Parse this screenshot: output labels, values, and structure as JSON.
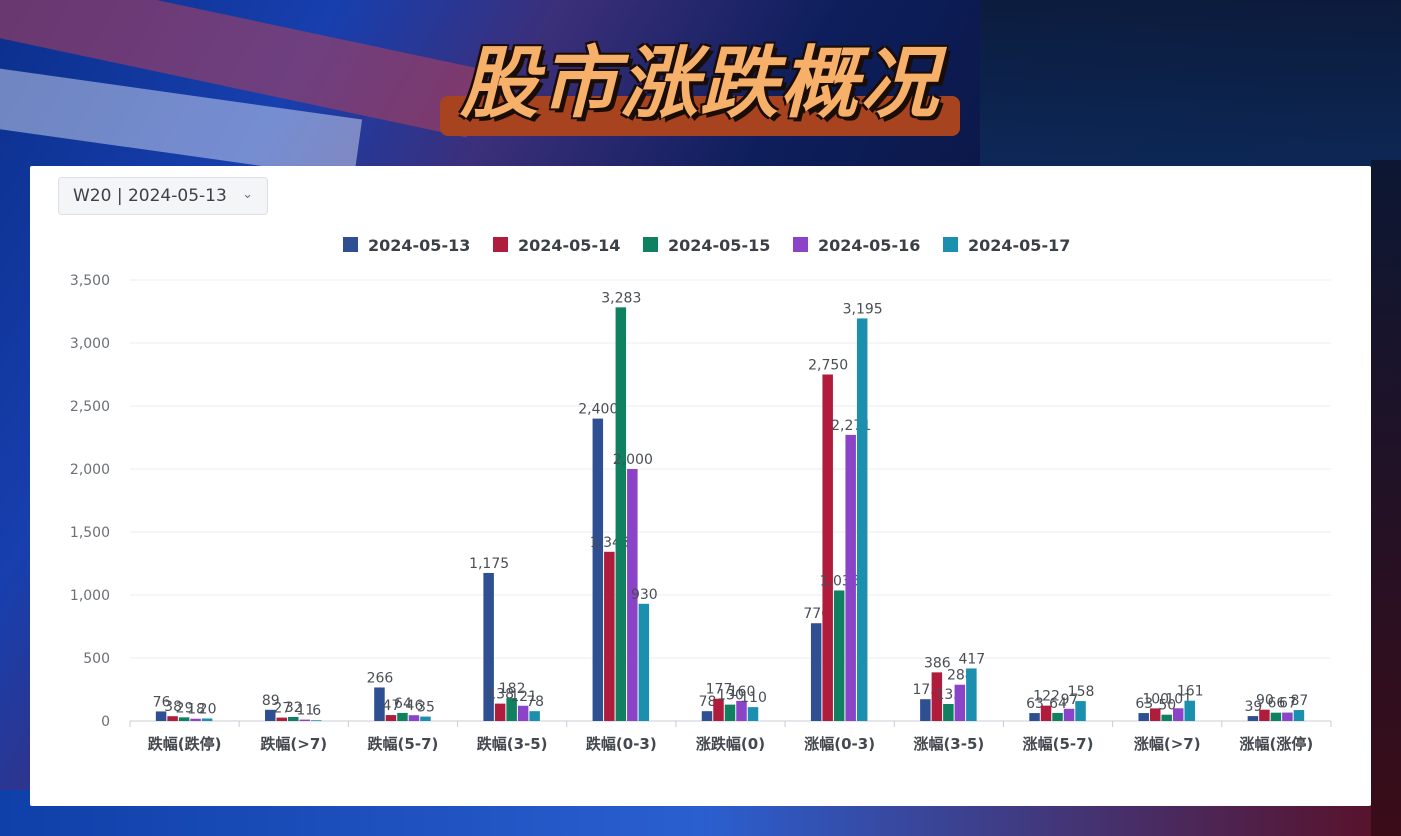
{
  "title": "股市涨跌概况",
  "week_selector": {
    "value": "W20 | 2024-05-13",
    "icon": "chevron-down-icon"
  },
  "chart_data": {
    "type": "bar",
    "categories": [
      "跌幅(跌停)",
      "跌幅(>7)",
      "跌幅(5-7)",
      "跌幅(3-5)",
      "跌幅(0-3)",
      "涨跌幅(0)",
      "涨幅(0-3)",
      "涨幅(3-5)",
      "涨幅(5-7)",
      "涨幅(>7)",
      "涨幅(涨停)"
    ],
    "series": [
      {
        "name": "2024-05-13",
        "color": "#2f4f93",
        "values": [
          76,
          89,
          266,
          1175,
          2400,
          78,
          776,
          173,
          63,
          63,
          39
        ]
      },
      {
        "name": "2024-05-14",
        "color": "#b01c3c",
        "values": [
          38,
          27,
          47,
          138,
          1343,
          177,
          2750,
          386,
          122,
          100,
          90
        ]
      },
      {
        "name": "2024-05-15",
        "color": "#0f8060",
        "values": [
          29,
          32,
          64,
          182,
          3283,
          130,
          1036,
          135,
          64,
          50,
          66
        ]
      },
      {
        "name": "2024-05-16",
        "color": "#8b44c8",
        "values": [
          18,
          11,
          46,
          121,
          2000,
          160,
          2271,
          288,
          97,
          101,
          67
        ]
      },
      {
        "name": "2024-05-17",
        "color": "#1a8fae",
        "values": [
          20,
          6,
          35,
          78,
          930,
          110,
          3195,
          417,
          158,
          161,
          87
        ]
      }
    ],
    "ylim": [
      0,
      3500
    ],
    "yticks": [
      "0",
      "500",
      "1,000",
      "1,500",
      "2,000",
      "2,500",
      "3,000",
      "3,500"
    ],
    "grid": true,
    "legend": "top-center",
    "xlabel": "",
    "ylabel": ""
  }
}
